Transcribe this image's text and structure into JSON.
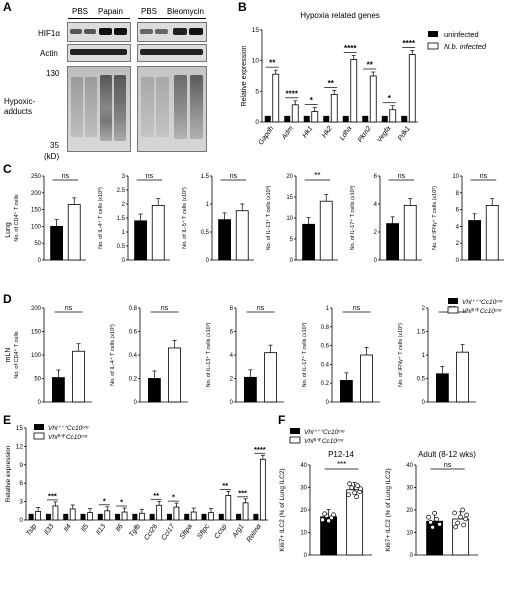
{
  "panels": {
    "A": "A",
    "B": "B",
    "C": "C",
    "D": "D",
    "E": "E",
    "F": "F"
  },
  "panelA": {
    "lanes": [
      "PBS",
      "Papain",
      "PBS",
      "Bleomycin"
    ],
    "rows": [
      "HIF1α",
      "Actin"
    ],
    "adducts_label": [
      "Hypoxic-",
      "adducts"
    ],
    "mw": [
      "130",
      "35"
    ],
    "unit": "(kD)"
  },
  "chart_data": [
    {
      "panel": "B",
      "type": "bar",
      "title": "Hypoxia related genes",
      "ylabel": "Relative expression",
      "categories": [
        "Gapdh",
        "Adm",
        "Hk1",
        "Hk2",
        "Ldha",
        "Pkm2",
        "Vegfa",
        "Pdk1"
      ],
      "series": [
        {
          "name": "uninfected",
          "values": [
            1,
            1,
            1,
            1,
            1,
            1,
            1,
            1
          ]
        },
        {
          "name": "N.b. infected",
          "values": [
            7.8,
            2.8,
            1.7,
            4.5,
            10.2,
            7.5,
            2.0,
            11.0
          ]
        }
      ],
      "significance": [
        "**",
        "****",
        "*",
        "**",
        "****",
        "**",
        "*",
        "****"
      ],
      "ylim": [
        0,
        15
      ],
      "yticks": [
        0,
        5,
        10,
        15
      ]
    },
    {
      "panel": "C",
      "type": "bar",
      "row_label": "Lung",
      "subplots": [
        {
          "ylabel": "No. of CD4⁺ T cells",
          "values": [
            100,
            165
          ],
          "ylim": [
            0,
            250
          ],
          "yticks": [
            0,
            50,
            100,
            150,
            200,
            250
          ],
          "sig": "ns"
        },
        {
          "ylabel": "No. of IL-4⁺ T cells (x10³)",
          "values": [
            1.4,
            1.95
          ],
          "ylim": [
            0,
            3
          ],
          "yticks": [
            0.0,
            0.5,
            1.0,
            1.5,
            2.0,
            2.5,
            3.0
          ],
          "sig": "ns"
        },
        {
          "ylabel": "No. of IL-5⁺ T cells (x10³)",
          "values": [
            0.72,
            0.88
          ],
          "ylim": [
            0,
            1.5
          ],
          "yticks": [
            0.0,
            0.5,
            1.0,
            1.5
          ],
          "sig": "ns"
        },
        {
          "ylabel": "No. of IL-13⁺ T cells (x10³)",
          "values": [
            8.5,
            14
          ],
          "ylim": [
            0,
            20
          ],
          "yticks": [
            0,
            5,
            10,
            15,
            20
          ],
          "sig": "**"
        },
        {
          "ylabel": "No. of IL-17⁺ T cells (x10³)",
          "values": [
            2.6,
            3.9
          ],
          "ylim": [
            0,
            6
          ],
          "yticks": [
            0,
            2,
            4,
            6
          ],
          "sig": "ns"
        },
        {
          "ylabel": "No. of IFNγ⁺ T cells (x10³)",
          "values": [
            4.7,
            6.5
          ],
          "ylim": [
            0,
            10
          ],
          "yticks": [
            0,
            2,
            4,
            6,
            8,
            10
          ],
          "sig": "ns"
        }
      ]
    },
    {
      "panel": "D",
      "type": "bar",
      "row_label": "mLN",
      "legend": [
        "Vhl⁺ᐟ⁺Cc10ᶜʳᵉ",
        "Vhlᶠˡᐟᶠˡ Cc10ᶜʳᵉ"
      ],
      "subplots": [
        {
          "ylabel": "No. of CD4⁺ T cells",
          "values": [
            52,
            108
          ],
          "ylim": [
            0,
            200
          ],
          "yticks": [
            0,
            50,
            100,
            150,
            200
          ],
          "sig": "ns"
        },
        {
          "ylabel": "No. of IL-4⁺ T cells (x10³)",
          "values": [
            0.2,
            0.46
          ],
          "ylim": [
            0,
            0.8
          ],
          "yticks": [
            0.0,
            0.2,
            0.4,
            0.6,
            0.8
          ],
          "sig": "ns"
        },
        {
          "ylabel": "No. of IL-13⁺ T cells (x10³)",
          "values": [
            2.1,
            4.2
          ],
          "ylim": [
            0,
            8
          ],
          "yticks": [
            0,
            2,
            4,
            6,
            8
          ],
          "sig": "ns"
        },
        {
          "ylabel": "No. of IL-17⁺ T cells (x10³)",
          "values": [
            0.23,
            0.5
          ],
          "ylim": [
            0,
            1
          ],
          "yticks": [
            0.0,
            0.2,
            0.4,
            0.6,
            0.8,
            1.0
          ],
          "sig": "ns"
        },
        {
          "ylabel": "No. of IFNγ⁺ T cells (x10³)",
          "values": [
            0.6,
            1.06
          ],
          "ylim": [
            0,
            2
          ],
          "yticks": [
            0.0,
            0.5,
            1.0,
            1.5,
            2.0
          ],
          "sig": "ns"
        }
      ]
    },
    {
      "panel": "E",
      "type": "bar",
      "ylabel": "Relative expression",
      "legend": [
        "Vhl⁺ᐟ⁺Cc10ᶜʳᵉ",
        "Vhlᶠˡᐟᶠˡ Cc10ᶜʳᵉ"
      ],
      "categories": [
        "Tslp",
        "Il33",
        "Il4",
        "Il5",
        "Il13",
        "Il6",
        "Tgfb",
        "Ccl26",
        "Ccl17",
        "Sftpa",
        "Sftpc",
        "Ccsp",
        "Arg1",
        "Relmα"
      ],
      "series": [
        {
          "name": "Vhl+/+Cc10cre",
          "values": [
            1,
            1,
            1,
            1,
            1,
            1,
            1,
            1,
            1,
            1,
            1,
            1,
            1,
            1
          ]
        },
        {
          "name": "Vhlfl/fl Cc10cre",
          "values": [
            1.4,
            2.3,
            1.8,
            1.2,
            1.5,
            1.3,
            1.1,
            2.4,
            2.1,
            1.3,
            1.2,
            4.0,
            2.8,
            9.9
          ]
        }
      ],
      "significance": [
        "",
        "***",
        "",
        "",
        "*",
        "*",
        "",
        "**",
        "*",
        "",
        "",
        "**",
        "***",
        "****"
      ],
      "ylim": [
        0,
        15
      ],
      "yticks": [
        0,
        3,
        6,
        9,
        12,
        15
      ]
    },
    {
      "panel": "F",
      "type": "bar",
      "legend": [
        "Vhl⁺ᐟ⁺Cc10ᶜʳᵉ",
        "Vhlᶠˡᐟᶠˡ Cc10ᶜʳᵉ"
      ],
      "subplots": [
        {
          "title": "P12-14",
          "ylabel": "Ki67+ ILC2 (% of Lung ILC2)",
          "values": [
            17,
            29
          ],
          "ylim": [
            0,
            40
          ],
          "yticks": [
            0,
            10,
            20,
            30,
            40
          ],
          "sig": "***"
        },
        {
          "title": "Adult (8-12 wks)",
          "ylabel": "Ki67+ ILC2 (% of Lung ILC2)",
          "values": [
            15,
            16
          ],
          "ylim": [
            0,
            40
          ],
          "yticks": [
            0,
            10,
            20,
            30,
            40
          ],
          "sig": "ns"
        }
      ]
    }
  ]
}
